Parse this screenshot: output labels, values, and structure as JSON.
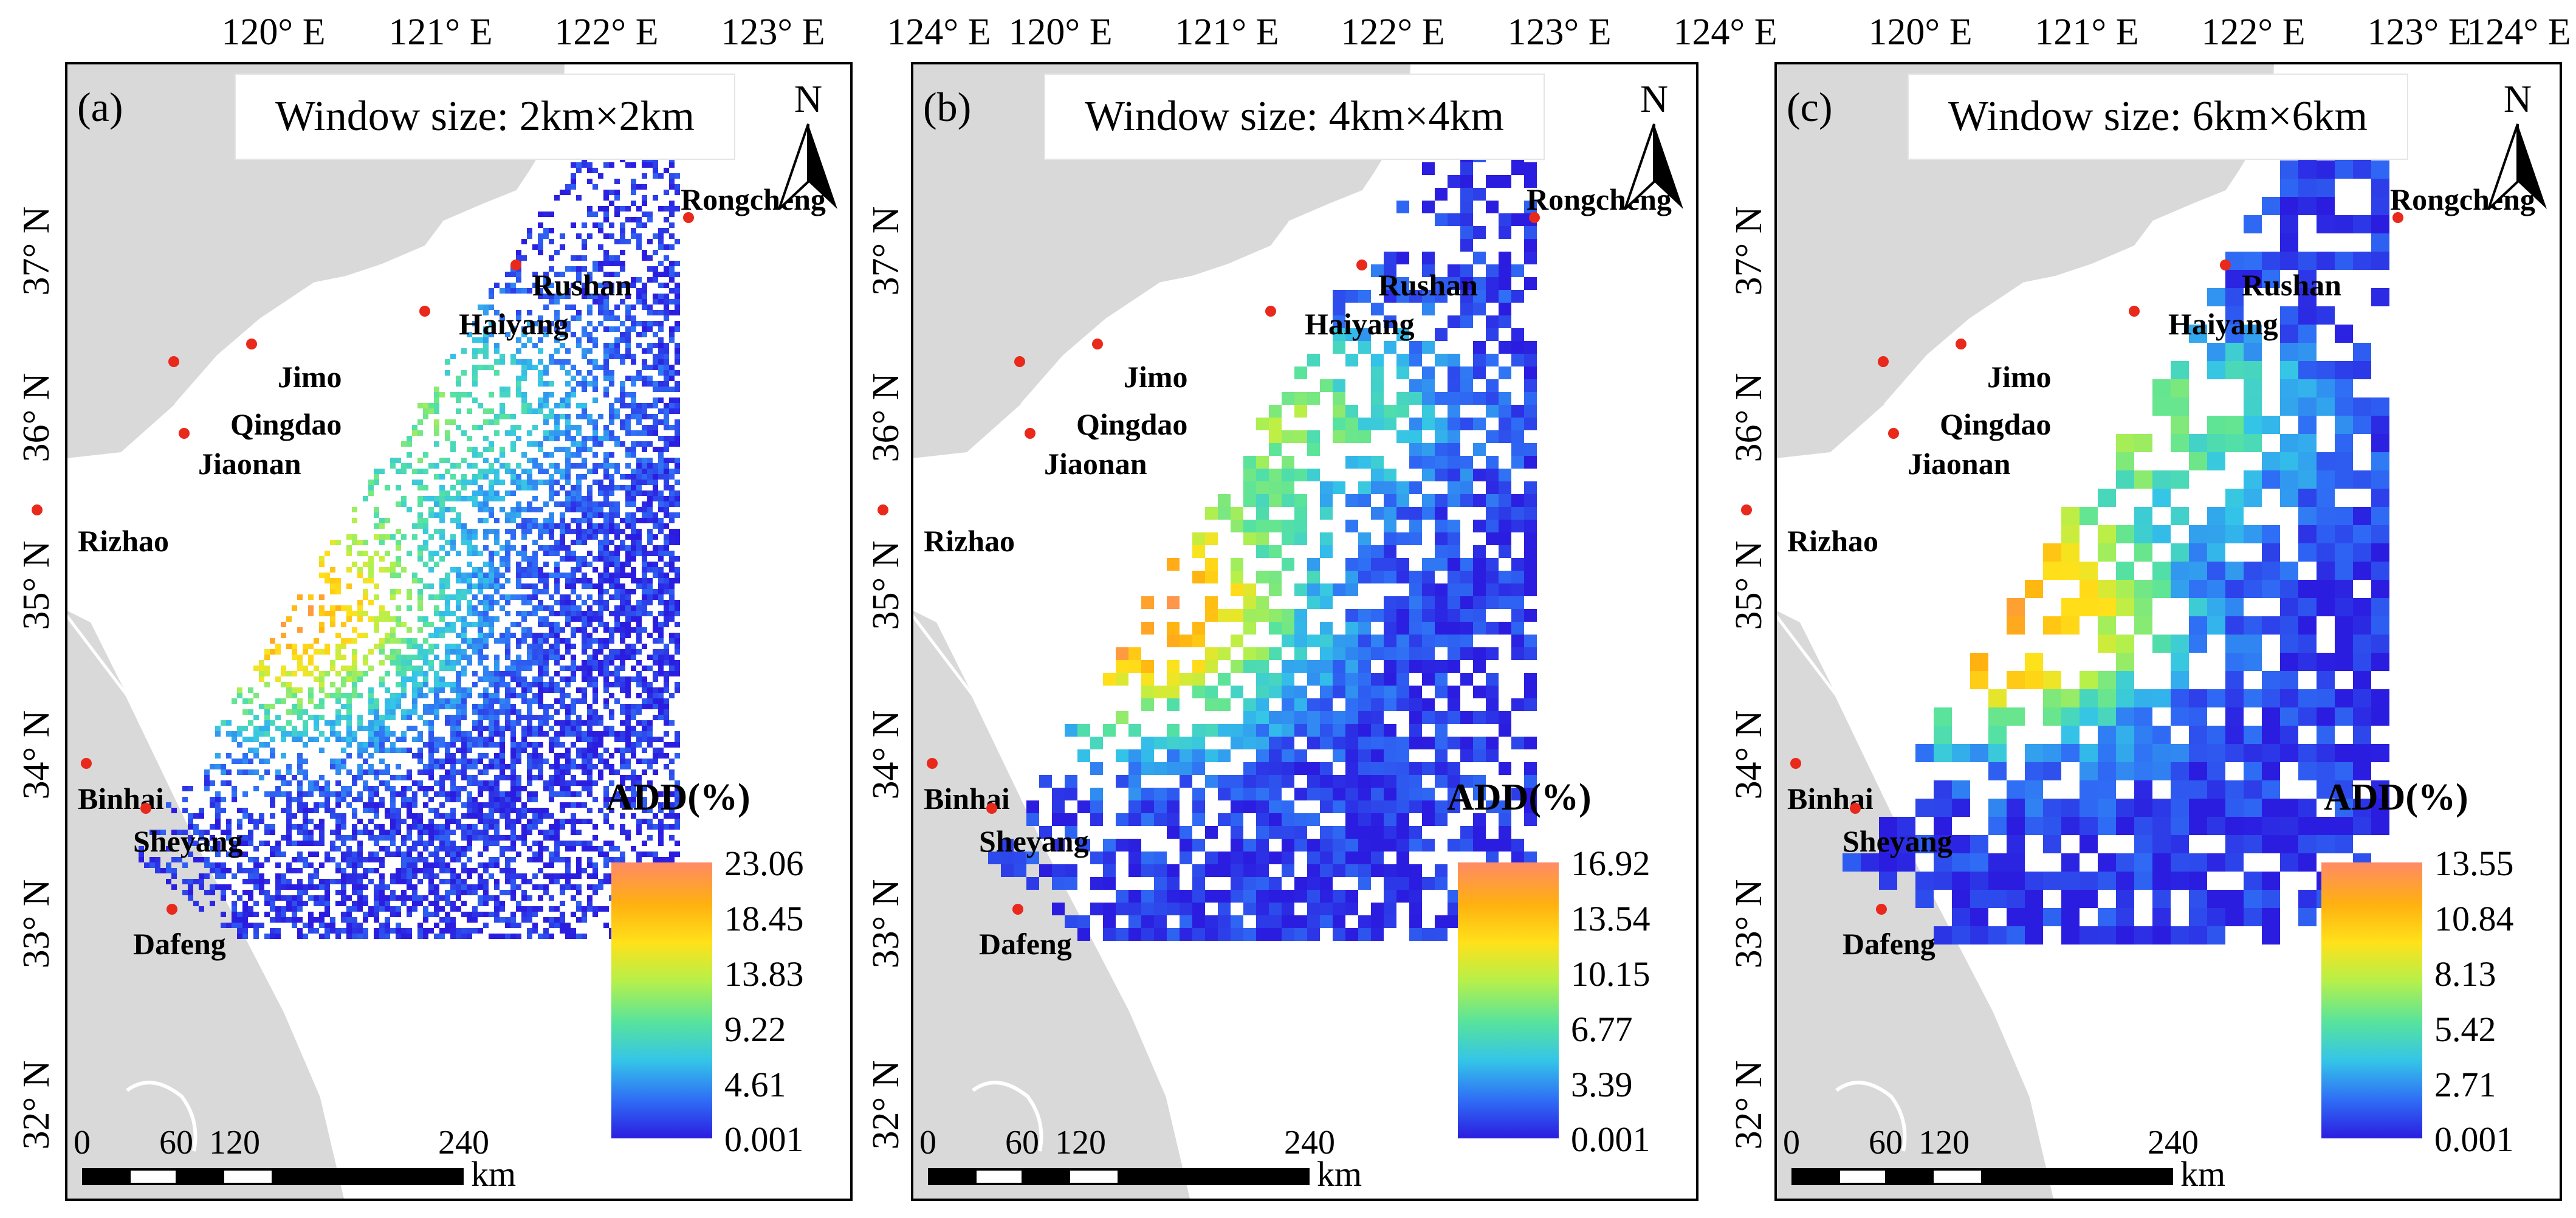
{
  "figure": {
    "panels": [
      {
        "tag": "(a)",
        "title": "Window size: 2km×2km",
        "legend_title": "ADD(%)",
        "legend_ticks": [
          "23.06",
          "18.45",
          "13.83",
          "9.22",
          "4.61",
          "0.001"
        ],
        "legend_max": 23.06,
        "grid_resolution_km": 2,
        "seed": 11
      },
      {
        "tag": "(b)",
        "title": "Window size: 4km×4km",
        "legend_title": "ADD(%)",
        "legend_ticks": [
          "16.92",
          "13.54",
          "10.15",
          "6.77",
          "3.39",
          "0.001"
        ],
        "legend_max": 16.92,
        "grid_resolution_km": 4,
        "seed": 23
      },
      {
        "tag": "(c)",
        "title": "Window size: 6km×6km",
        "legend_title": "ADD(%)",
        "legend_ticks": [
          "13.55",
          "10.84",
          "8.13",
          "5.42",
          "2.71",
          "0.001"
        ],
        "legend_max": 13.55,
        "grid_resolution_km": 6,
        "seed": 37
      }
    ],
    "lon_labels": [
      "120° E",
      "121° E",
      "122° E",
      "123° E",
      "124° E"
    ],
    "lat_labels": [
      "37° N",
      "36° N",
      "35° N",
      "34° N",
      "33° N",
      "32° N"
    ],
    "north_label": "N",
    "scale": {
      "ticks": [
        "0",
        "60",
        "120",
        "240"
      ],
      "unit": "km"
    },
    "cities": [
      "Rongcheng",
      "Rushan",
      "Haiyang",
      "Jimo",
      "Qingdao",
      "Jiaonan",
      "Rizhao",
      "Binhai",
      "Sheyang",
      "Dafeng"
    ],
    "colors": {
      "land": "#d9d9d9",
      "coast": "#ffffff",
      "city_dot": "#e8291c",
      "ramp": [
        "#2b1de0",
        "#2f6ef5",
        "#34c4e8",
        "#57e39d",
        "#b6f04a",
        "#ffe11a",
        "#ffb010",
        "#ff8a66"
      ]
    }
  }
}
